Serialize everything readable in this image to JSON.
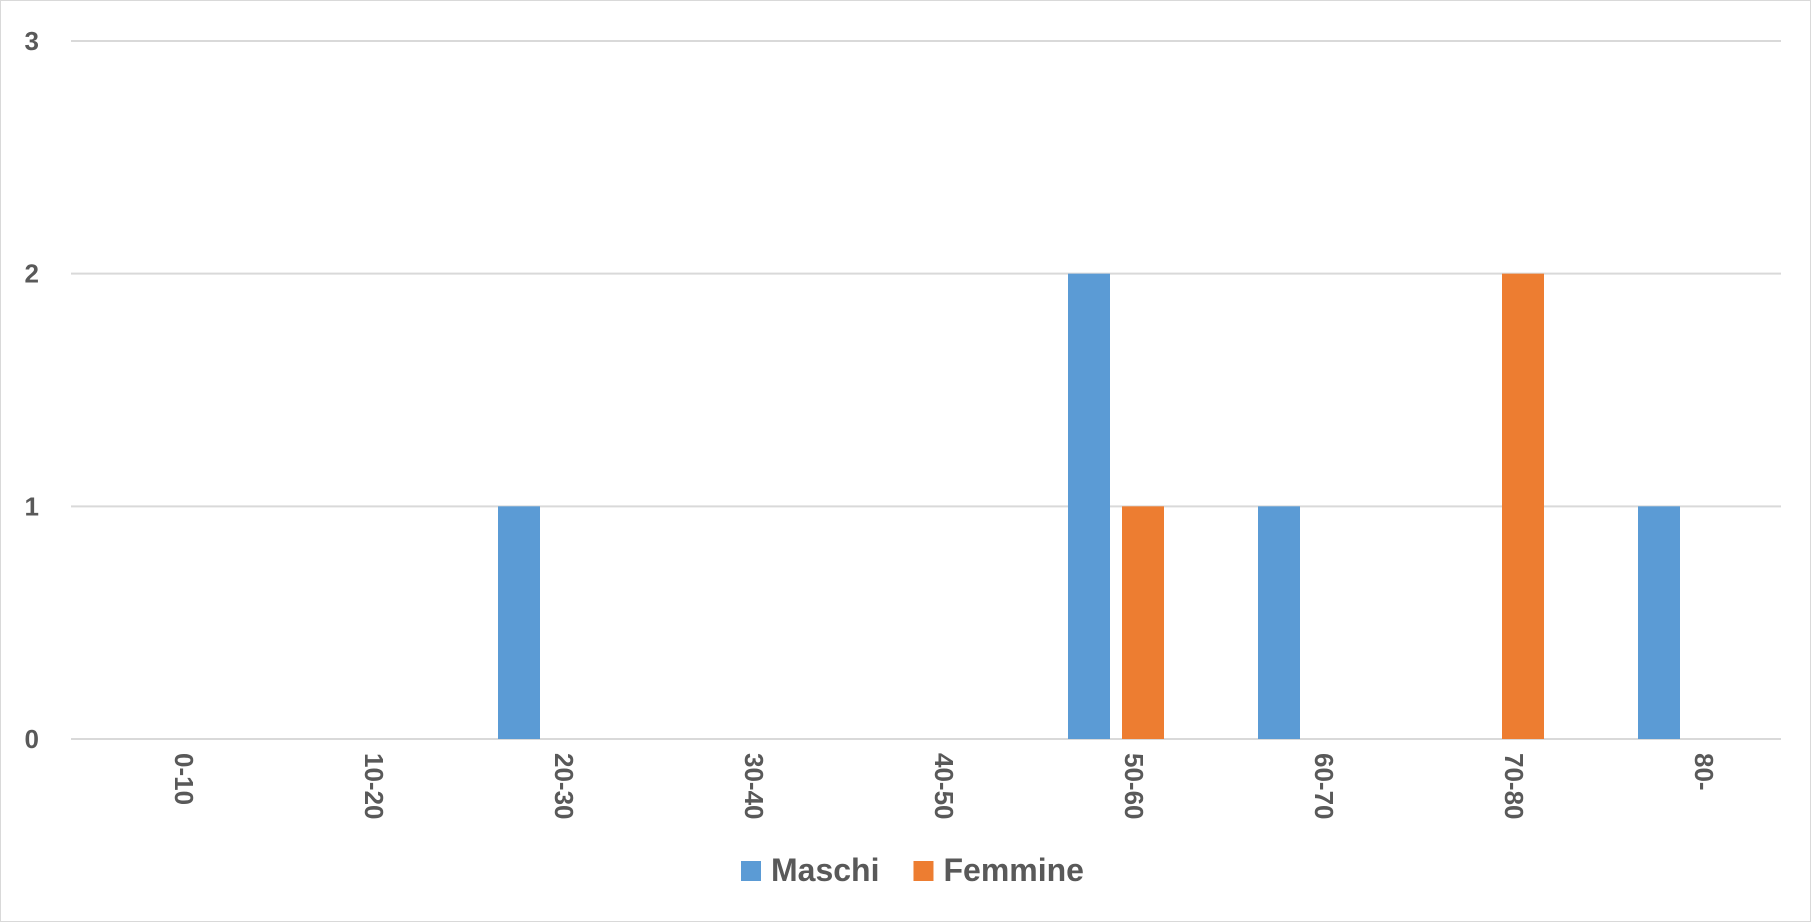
{
  "chart_data": {
    "type": "bar",
    "categories": [
      "0-10",
      "10-20",
      "20-30",
      "30-40",
      "40-50",
      "50-60",
      "60-70",
      "70-80",
      "80-"
    ],
    "series": [
      {
        "name": "Maschi",
        "color": "#5b9bd5",
        "values": [
          0,
          0,
          1,
          0,
          0,
          2,
          1,
          0,
          1
        ]
      },
      {
        "name": "Femmine",
        "color": "#ed7d31",
        "values": [
          0,
          0,
          0,
          0,
          0,
          1,
          0,
          2,
          0
        ]
      }
    ],
    "yticks": [
      0,
      1,
      2,
      3
    ],
    "ylim": [
      0,
      3
    ],
    "grid": true,
    "legend": "bottom-center",
    "title": "",
    "xlabel": "",
    "ylabel": ""
  }
}
